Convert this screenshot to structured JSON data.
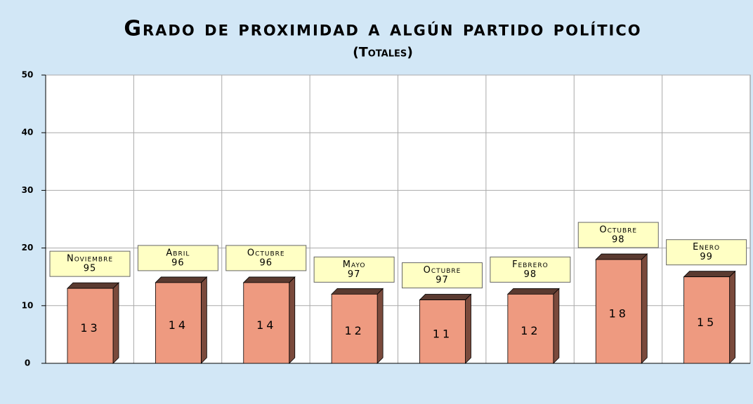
{
  "chart_data": {
    "type": "bar",
    "title": "Grado de proximidad a algún partido político",
    "subtitle": "(Totales)",
    "categories": [
      [
        "Noviembre",
        "95"
      ],
      [
        "Abril",
        "96"
      ],
      [
        "Octubre",
        "96"
      ],
      [
        "Mayo",
        "97"
      ],
      [
        "Octubre",
        "97"
      ],
      [
        "Febrero",
        "98"
      ],
      [
        "Octubre",
        "98"
      ],
      [
        "Enero",
        "99"
      ]
    ],
    "values": [
      13,
      14,
      14,
      12,
      11,
      12,
      18,
      15
    ],
    "color": "#ee9a80",
    "ylim": [
      0,
      50
    ],
    "yticks": [
      0,
      10,
      20,
      30,
      40,
      50
    ],
    "grid": true
  }
}
